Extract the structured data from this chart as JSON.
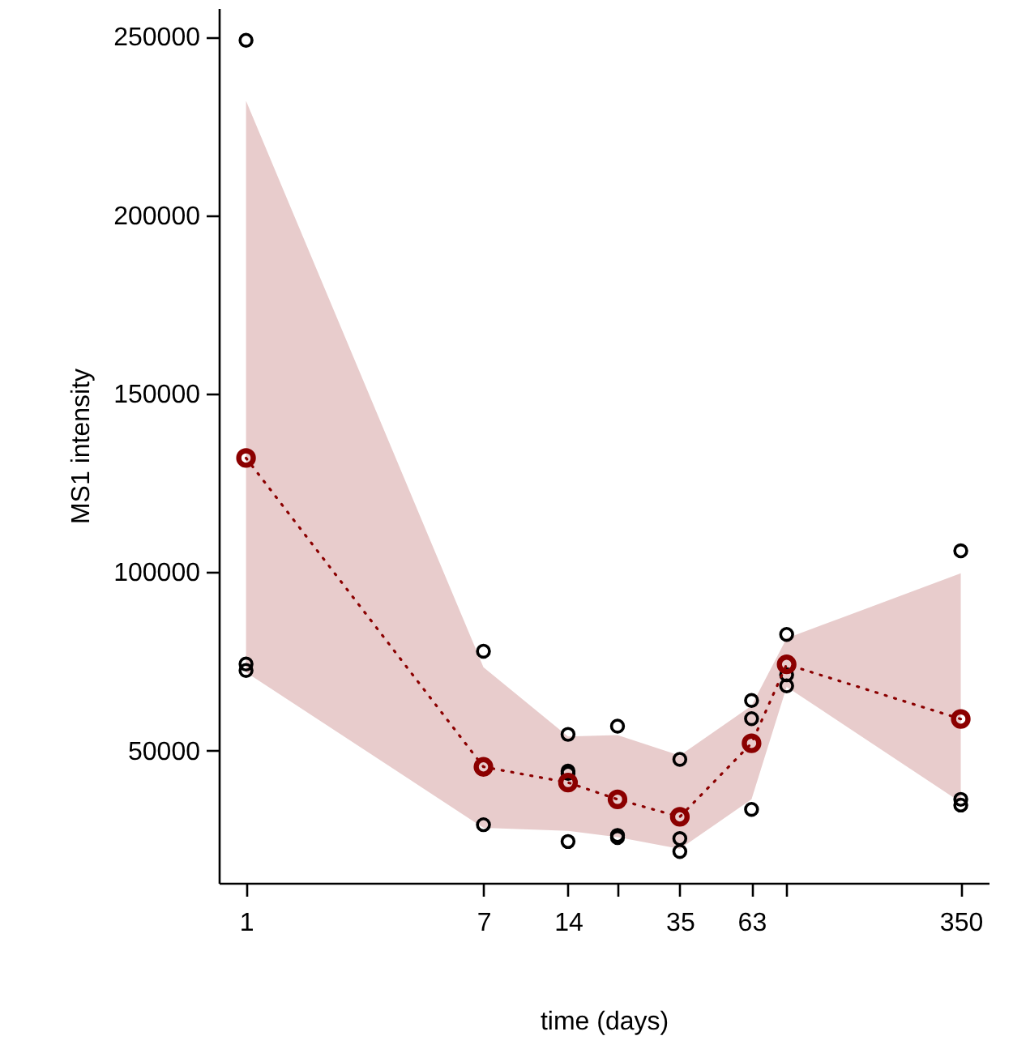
{
  "chart_data": {
    "type": "scatter",
    "xlabel": "time (days)",
    "ylabel": "MS1 intensity",
    "log": "x",
    "marker": "circle",
    "line_style": "dotted",
    "grid": false,
    "xlim": [
      0.8,
      440
    ],
    "xticks": [
      1,
      7,
      14,
      {
        "value": 21,
        "label": null
      },
      35,
      63,
      {
        "value": 84,
        "label": null
      },
      350
    ],
    "ylim": [
      13000,
      258000
    ],
    "yticks": [
      50000,
      100000,
      150000,
      200000,
      250000
    ],
    "series": [
      {
        "color": "#000000",
        "x": [
          1,
          1,
          1,
          7,
          7,
          14,
          14,
          14,
          14,
          21,
          21,
          21,
          35,
          35,
          35,
          63,
          63,
          63,
          84,
          84,
          84,
          350,
          350,
          350
        ],
        "values": [
          249000,
          74300,
          72500,
          77900,
          29300,
          54600,
          44300,
          43700,
          24600,
          56900,
          26300,
          25700,
          47600,
          25400,
          21800,
          64100,
          59000,
          33600,
          82600,
          71300,
          68200,
          106000,
          36400,
          34800
        ]
      },
      {
        "type": "line",
        "color": "#8b0000",
        "x": [
          1,
          7,
          14,
          21,
          35,
          63,
          84,
          350
        ],
        "values": [
          132000,
          45500,
          41100,
          36400,
          31500,
          52100,
          74200,
          58900
        ],
        "lower": [
          72000,
          28400,
          27600,
          25800,
          22500,
          36400,
          67900,
          35600
        ],
        "upper": [
          232000,
          73400,
          54000,
          54400,
          48700,
          62600,
          81500,
          99700
        ]
      }
    ]
  }
}
